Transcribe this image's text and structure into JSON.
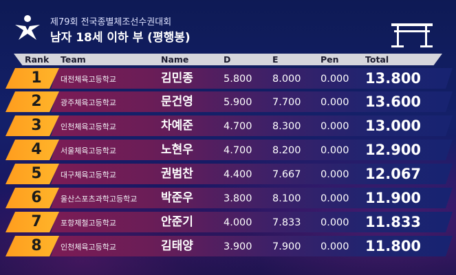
{
  "header": {
    "subtitle": "제79회 전국종별체조선수권대회",
    "title": "남자 18세 이하 부 (평행봉)"
  },
  "columns": {
    "rank": "Rank",
    "team": "Team",
    "name": "Name",
    "d": "D",
    "e": "E",
    "pen": "Pen",
    "total": "Total"
  },
  "rows": [
    {
      "rank": "1",
      "team": "대전체육고등학교",
      "name": "김민종",
      "d": "5.800",
      "e": "8.000",
      "pen": "0.000",
      "total": "13.800"
    },
    {
      "rank": "2",
      "team": "광주체육고등학교",
      "name": "문건영",
      "d": "5.900",
      "e": "7.700",
      "pen": "0.000",
      "total": "13.600"
    },
    {
      "rank": "3",
      "team": "인천체육고등학교",
      "name": "차예준",
      "d": "4.700",
      "e": "8.300",
      "pen": "0.000",
      "total": "13.000"
    },
    {
      "rank": "4",
      "team": "서울체육고등학교",
      "name": "노현우",
      "d": "4.700",
      "e": "8.200",
      "pen": "0.000",
      "total": "12.900"
    },
    {
      "rank": "5",
      "team": "대구체육고등학교",
      "name": "권범찬",
      "d": "4.400",
      "e": "7.667",
      "pen": "0.000",
      "total": "12.067"
    },
    {
      "rank": "6",
      "team": "울산스포츠과학고등학교",
      "name": "박준우",
      "d": "3.800",
      "e": "8.100",
      "pen": "0.000",
      "total": "11.900"
    },
    {
      "rank": "7",
      "team": "포항제철고등학교",
      "name": "안준기",
      "d": "4.000",
      "e": "7.833",
      "pen": "0.000",
      "total": "11.833"
    },
    {
      "rank": "8",
      "team": "인천체육고등학교",
      "name": "김태양",
      "d": "3.900",
      "e": "7.900",
      "pen": "0.000",
      "total": "11.800"
    }
  ],
  "icons": {
    "logo": "gymnast-star-logo",
    "apparatus": "parallel-bars-icon"
  },
  "colors": {
    "rank_accent": "#ffa726",
    "band_start": "#7b1c55",
    "band_end": "#172371",
    "background": "#0e1a55",
    "header_row": "#d6d6dc"
  }
}
